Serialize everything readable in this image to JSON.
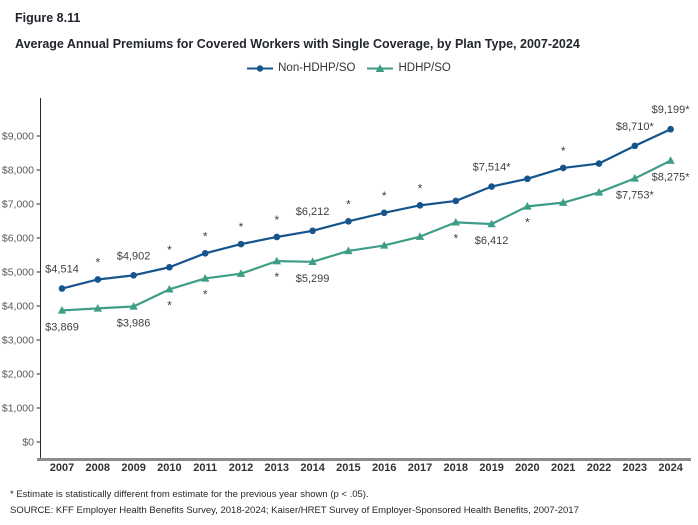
{
  "header": {
    "figure_label": "Figure 8.11",
    "title": "Average Annual Premiums for Covered Workers with Single Coverage, by Plan Type, 2007-2024"
  },
  "legend": {
    "items": [
      {
        "label": "Non-HDHP/SO",
        "color": "#16548C",
        "marker": "line-circle-marker-icon"
      },
      {
        "label": "HDHP/SO",
        "color": "#3E9D86",
        "marker": "line-triangle-marker-icon"
      }
    ]
  },
  "footnotes": {
    "note": "* Estimate is statistically different from estimate for the previous year shown (p < .05).",
    "source": "SOURCE: KFF Employer Health Benefits Survey, 2018-2024; Kaiser/HRET Survey of Employer-Sponsored Health Benefits, 2007-2017"
  },
  "chart_data": {
    "type": "line",
    "title": "Average Annual Premiums for Covered Workers with Single Coverage, by Plan Type, 2007-2024",
    "xlabel": "",
    "ylabel": "",
    "categories": [
      "2007",
      "2008",
      "2009",
      "2010",
      "2011",
      "2012",
      "2013",
      "2014",
      "2015",
      "2016",
      "2017",
      "2018",
      "2019",
      "2020",
      "2021",
      "2022",
      "2023",
      "2024"
    ],
    "y_axis": {
      "tick_labels": [
        "$0",
        "$1,000",
        "$2,000",
        "$3,000",
        "$4,000",
        "$5,000",
        "$6,000",
        "$7,000",
        "$8,000",
        "$9,000"
      ],
      "tick_values": [
        0,
        1000,
        2000,
        3000,
        4000,
        5000,
        6000,
        7000,
        8000,
        9000
      ],
      "range": [
        0,
        10100
      ]
    },
    "grid": false,
    "legend_position": "top",
    "series": [
      {
        "name": "Non-HDHP/SO",
        "color": "#16548C",
        "marker": "circle",
        "label_side": "above",
        "values": [
          4514,
          4780,
          4902,
          5140,
          5550,
          5820,
          6030,
          6212,
          6490,
          6740,
          6960,
          7090,
          7514,
          7740,
          8060,
          8190,
          8710,
          9199
        ],
        "point_labels": {
          "2007": "$4,514",
          "2009": "$4,902",
          "2014": "$6,212",
          "2019": "$7,514*",
          "2023": "$8,710*",
          "2024": "$9,199*"
        },
        "asterisk_only_years": [
          "2008",
          "2010",
          "2011",
          "2012",
          "2013",
          "2015",
          "2016",
          "2017",
          "2021"
        ]
      },
      {
        "name": "HDHP/SO",
        "color": "#3E9D86",
        "marker": "triangle",
        "label_side": "below",
        "values": [
          3869,
          3930,
          3986,
          4490,
          4810,
          4950,
          5320,
          5299,
          5620,
          5780,
          6040,
          6460,
          6412,
          6930,
          7040,
          7340,
          7753,
          8275
        ],
        "point_labels": {
          "2007": "$3,869",
          "2009": "$3,986",
          "2014": "$5,299",
          "2019": "$6,412",
          "2023": "$7,753*",
          "2024": "$8,275*"
        },
        "asterisk_only_years": [
          "2010",
          "2011",
          "2013",
          "2018",
          "2020"
        ]
      }
    ]
  }
}
